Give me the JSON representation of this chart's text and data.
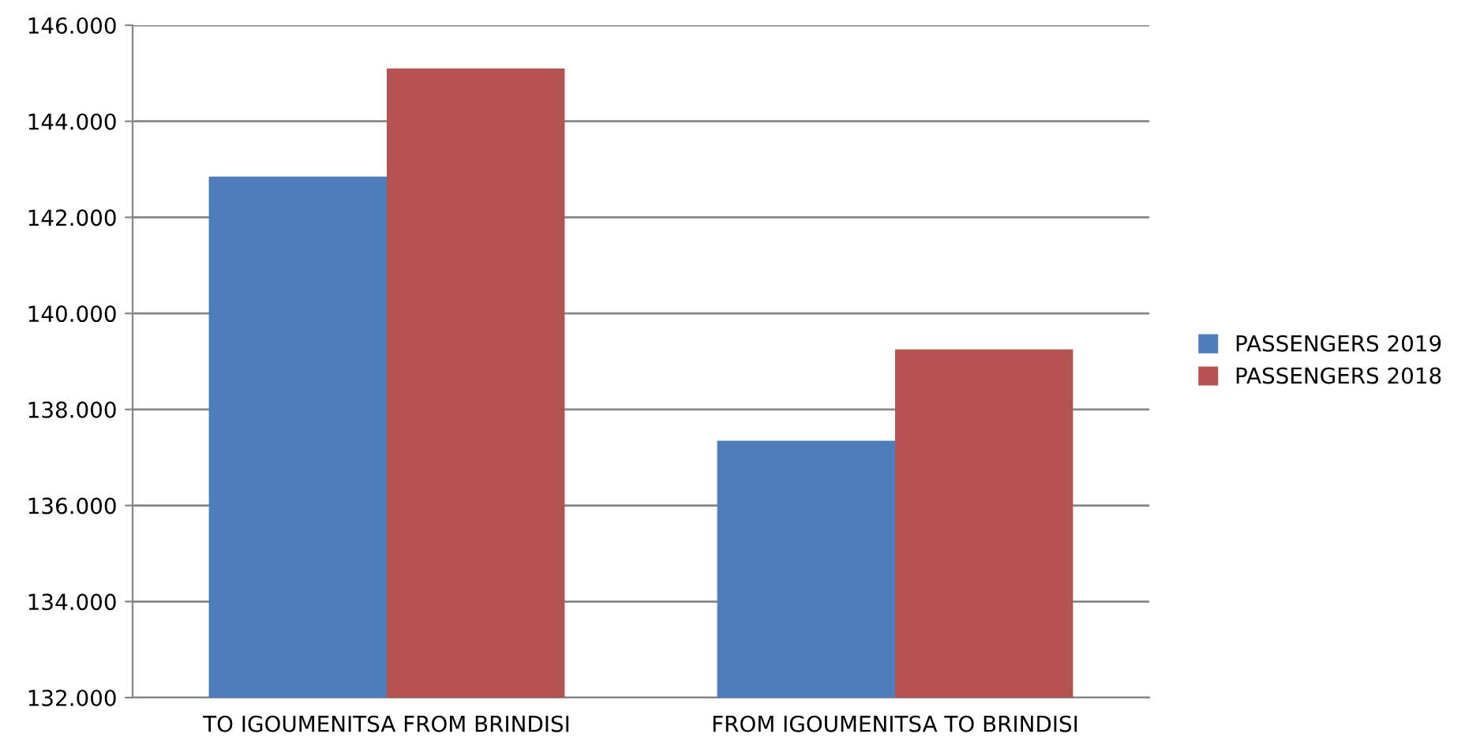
{
  "chart_data": {
    "type": "bar",
    "categories": [
      "TO IGOUMENITSA FROM BRINDISI",
      "FROM IGOUMENITSA TO BRINDISI"
    ],
    "series": [
      {
        "name": "PASSENGERS 2019",
        "color": "#4d7ebb",
        "values": [
          142850,
          137350
        ]
      },
      {
        "name": "PASSENGERS 2018",
        "color": "#b55352",
        "values": [
          145100,
          139250
        ]
      }
    ],
    "ylim": [
      132000,
      146000
    ],
    "yticks": [
      {
        "value": 132000,
        "label": "132.000"
      },
      {
        "value": 134000,
        "label": "134.000"
      },
      {
        "value": 136000,
        "label": "136.000"
      },
      {
        "value": 138000,
        "label": "138.000"
      },
      {
        "value": 140000,
        "label": "140.000"
      },
      {
        "value": 142000,
        "label": "142.000"
      },
      {
        "value": 144000,
        "label": "144.000"
      },
      {
        "value": 146000,
        "label": "146.000"
      }
    ],
    "grid": "y",
    "legend": "right"
  }
}
